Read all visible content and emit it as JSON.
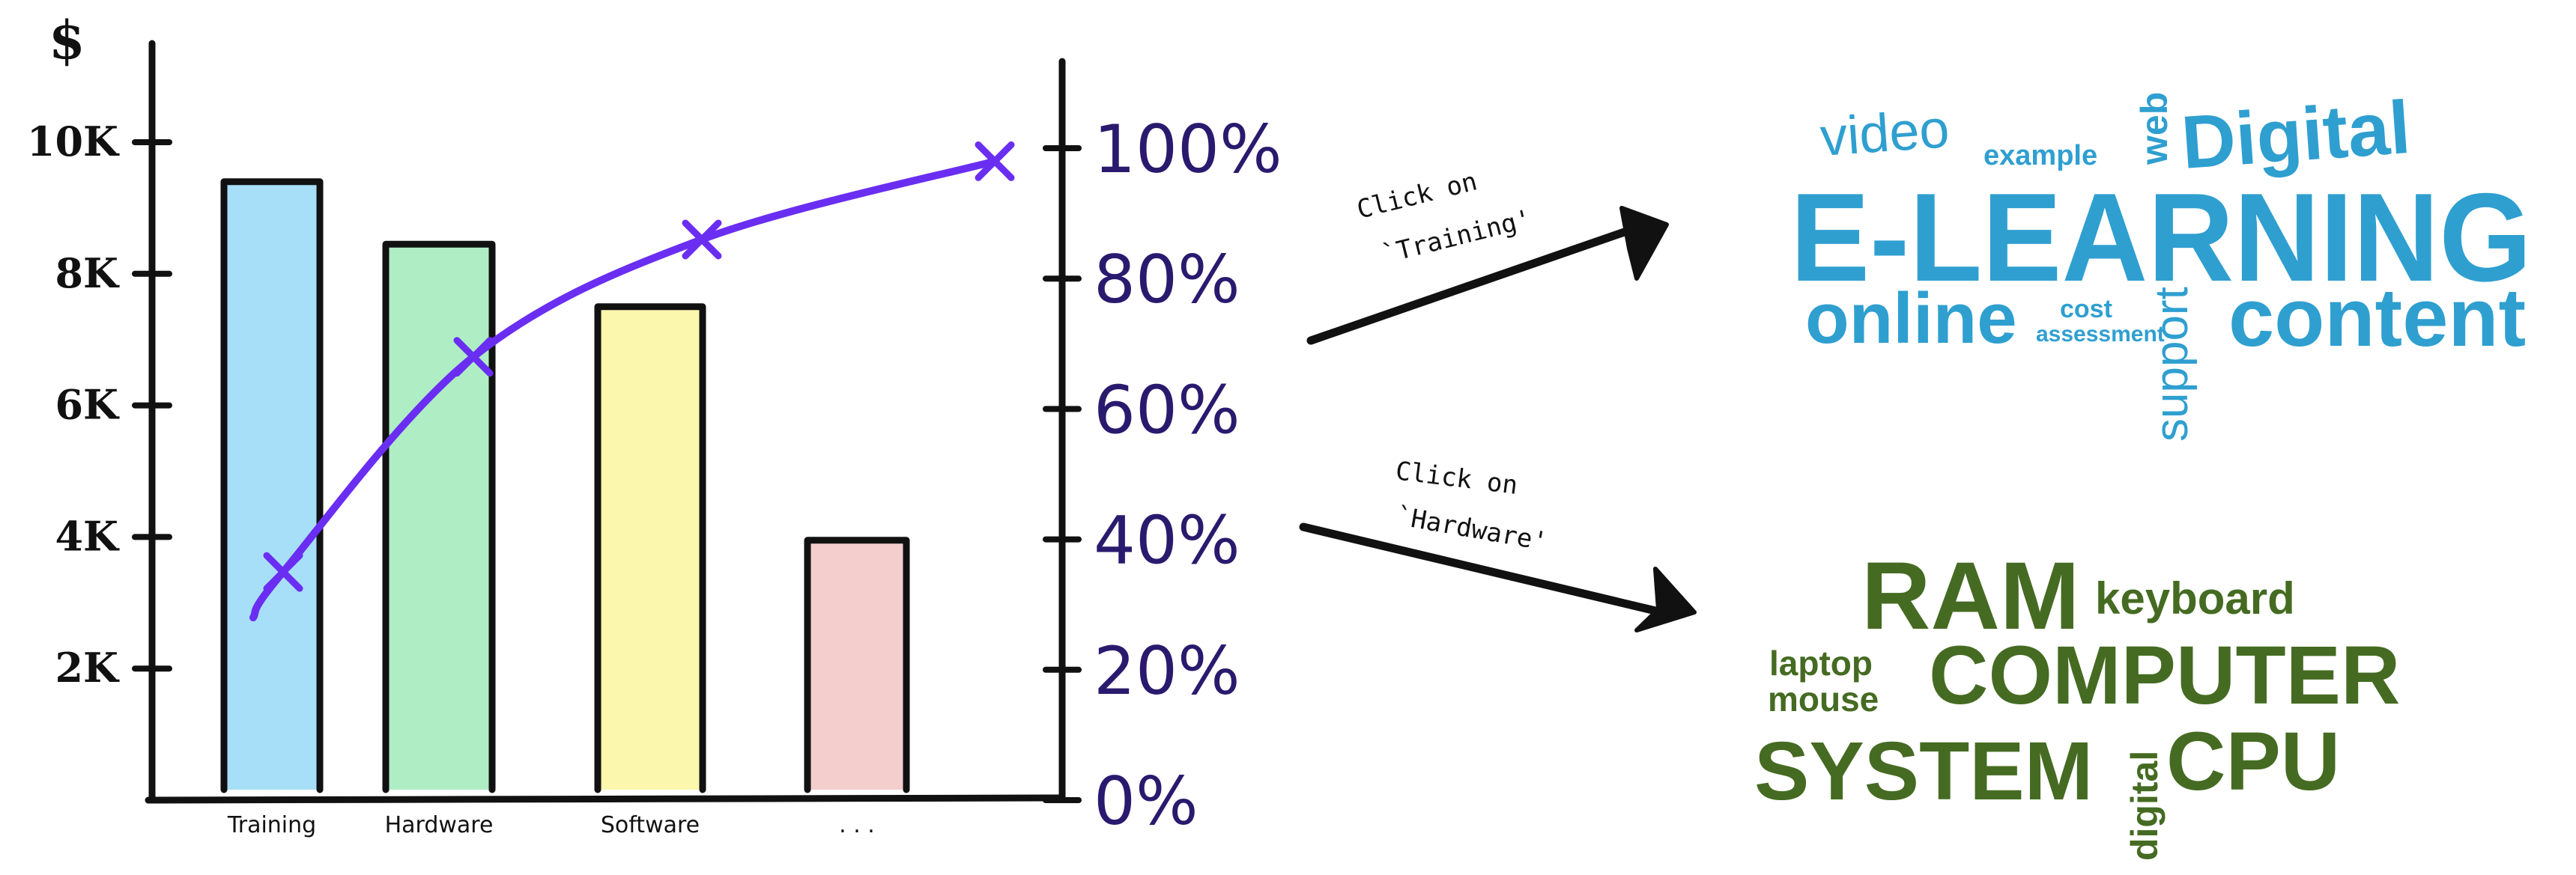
{
  "chart_data": {
    "type": "bar",
    "title": "",
    "xlabel": "",
    "ylabel": "$",
    "categories": [
      "Training",
      "Hardware",
      "Software",
      ". . ."
    ],
    "values": [
      9400,
      8450,
      7500,
      3950
    ],
    "bar_colors": [
      "#9fdcf7",
      "#a8ecc0",
      "#fbf6a6",
      "#f3c9c9"
    ],
    "ylim": [
      0,
      11000
    ],
    "y_ticks": [
      {
        "value": 2000,
        "label": "2K"
      },
      {
        "value": 4000,
        "label": "4K"
      },
      {
        "value": 6000,
        "label": "6K"
      },
      {
        "value": 8000,
        "label": "8K"
      },
      {
        "value": 10000,
        "label": "10K"
      }
    ],
    "y2_ticks": [
      {
        "value": 0,
        "label": "0%"
      },
      {
        "value": 20,
        "label": "20%"
      },
      {
        "value": 40,
        "label": "40%"
      },
      {
        "value": 60,
        "label": "60%"
      },
      {
        "value": 80,
        "label": "80%"
      },
      {
        "value": 100,
        "label": "100%"
      }
    ],
    "y2lim": [
      0,
      100
    ],
    "cumulative_line": {
      "color": "#6a2ef2",
      "points": [
        {
          "category": "Training",
          "value": 35
        },
        {
          "category": "Hardware",
          "value": 68
        },
        {
          "category": "Software",
          "value": 86
        },
        {
          "category": ". . .",
          "value": 98
        }
      ]
    },
    "grid": false,
    "legend": "none"
  },
  "annotations": [
    {
      "text": "Click on 'Training'",
      "lines": [
        "Click  on",
        "`Training'"
      ]
    },
    {
      "text": "Click on 'Hardware'",
      "lines": [
        "Click  on",
        "`Hardware'"
      ]
    }
  ],
  "word_clouds": [
    {
      "color": "#2f9fd0",
      "words": [
        "video",
        "example",
        "web",
        "Digital",
        "E-LEARNING",
        "online",
        "cost",
        "assessment",
        "support",
        "content"
      ]
    },
    {
      "color": "#456b22",
      "words": [
        "RAM",
        "keyboard",
        "laptop",
        "mouse",
        "COMPUTER",
        "SYSTEM",
        "digital",
        "CPU"
      ]
    }
  ]
}
